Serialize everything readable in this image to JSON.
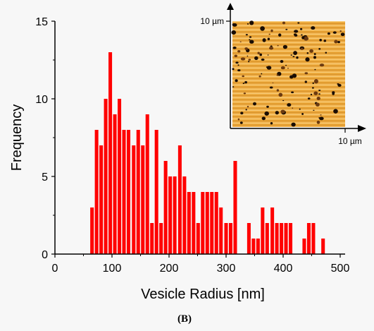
{
  "chart_data": {
    "type": "bar",
    "xlabel": "Vesicle Radius [nm]",
    "ylabel": "Frequency",
    "xlim": [
      0,
      500
    ],
    "ylim": [
      0,
      15
    ],
    "x_ticks": [
      0,
      100,
      200,
      300,
      400,
      500
    ],
    "y_ticks": [
      0,
      5,
      10,
      15
    ],
    "bin_width": 8.2,
    "bar_color": "#ff0000",
    "x": [
      65,
      73,
      81,
      89,
      97,
      105,
      113,
      121,
      129,
      138,
      146,
      154,
      162,
      170,
      178,
      186,
      194,
      202,
      210,
      219,
      227,
      235,
      243,
      251,
      259,
      267,
      275,
      283,
      291,
      300,
      308,
      316,
      324,
      332,
      340,
      348,
      356,
      364,
      372,
      381,
      389,
      397,
      405,
      413,
      421,
      429,
      437,
      445,
      453,
      462,
      470,
      478,
      486,
      494
    ],
    "values": [
      3,
      8,
      7,
      10,
      13,
      9,
      10,
      8,
      8,
      7,
      8,
      7,
      9,
      2,
      8,
      2,
      6,
      5,
      5,
      7,
      5,
      4,
      4,
      2,
      4,
      4,
      4,
      4,
      3,
      2,
      2,
      6,
      0,
      0,
      2,
      1,
      1,
      3,
      2,
      3,
      2,
      2,
      2,
      2,
      0,
      0,
      1,
      2,
      2,
      0,
      1,
      0,
      0,
      0
    ],
    "grid": false,
    "caption": "(B)",
    "inset": {
      "type": "image",
      "description_icon": "afm-height-map",
      "y_axis_label": "10 µm",
      "x_axis_label": "10 µm"
    }
  }
}
